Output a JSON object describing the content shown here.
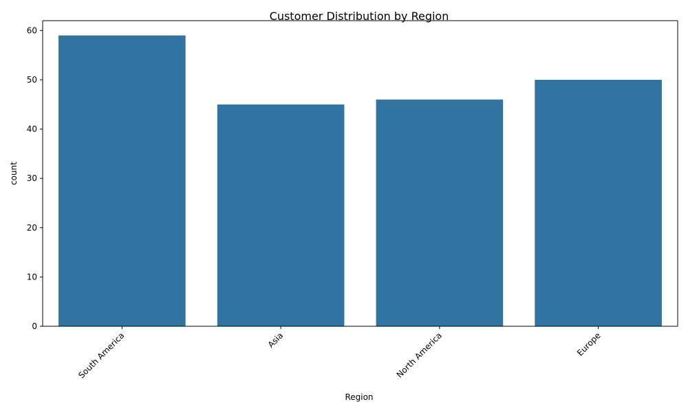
{
  "chart_data": {
    "type": "bar",
    "title": "Customer Distribution by Region",
    "xlabel": "Region",
    "ylabel": "count",
    "categories": [
      "South America",
      "Asia",
      "North America",
      "Europe"
    ],
    "values": [
      59,
      45,
      46,
      50
    ],
    "ylim": [
      0,
      62
    ],
    "yticks": [
      0,
      10,
      20,
      30,
      40,
      50,
      60
    ],
    "xtick_rotation": 45,
    "grid": false,
    "bar_color": "#3274a1"
  }
}
